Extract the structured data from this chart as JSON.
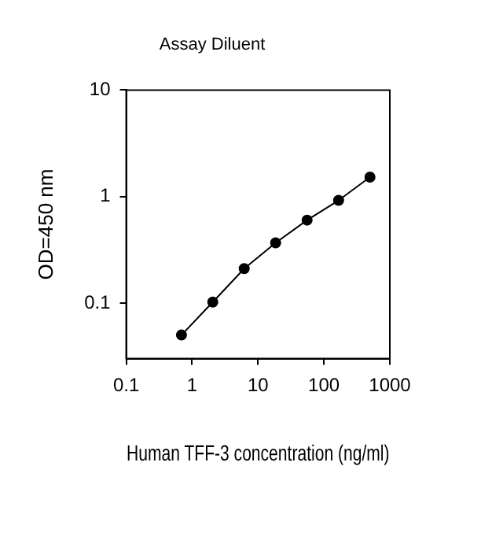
{
  "chart_data": {
    "type": "line",
    "title": "Assay Diluent",
    "xlabel": "Human TFF-3 concentration (ng/ml)",
    "ylabel": "OD=450 nm",
    "x": [
      0.69,
      2.06,
      6.17,
      18.5,
      55.6,
      167,
      500
    ],
    "series": [
      {
        "color": "#000000",
        "values": [
          0.05,
          0.102,
          0.21,
          0.367,
          0.6,
          0.92,
          1.52
        ]
      }
    ],
    "log": "xy",
    "xlim": [
      0.1,
      1000
    ],
    "xticks": [
      0.1,
      1,
      10,
      100,
      1000
    ],
    "ylim": [
      0.03,
      10
    ],
    "yticks": [
      0.1,
      1,
      10
    ],
    "grid": false,
    "legend": false,
    "marker": "circle",
    "line_style": "solid"
  }
}
